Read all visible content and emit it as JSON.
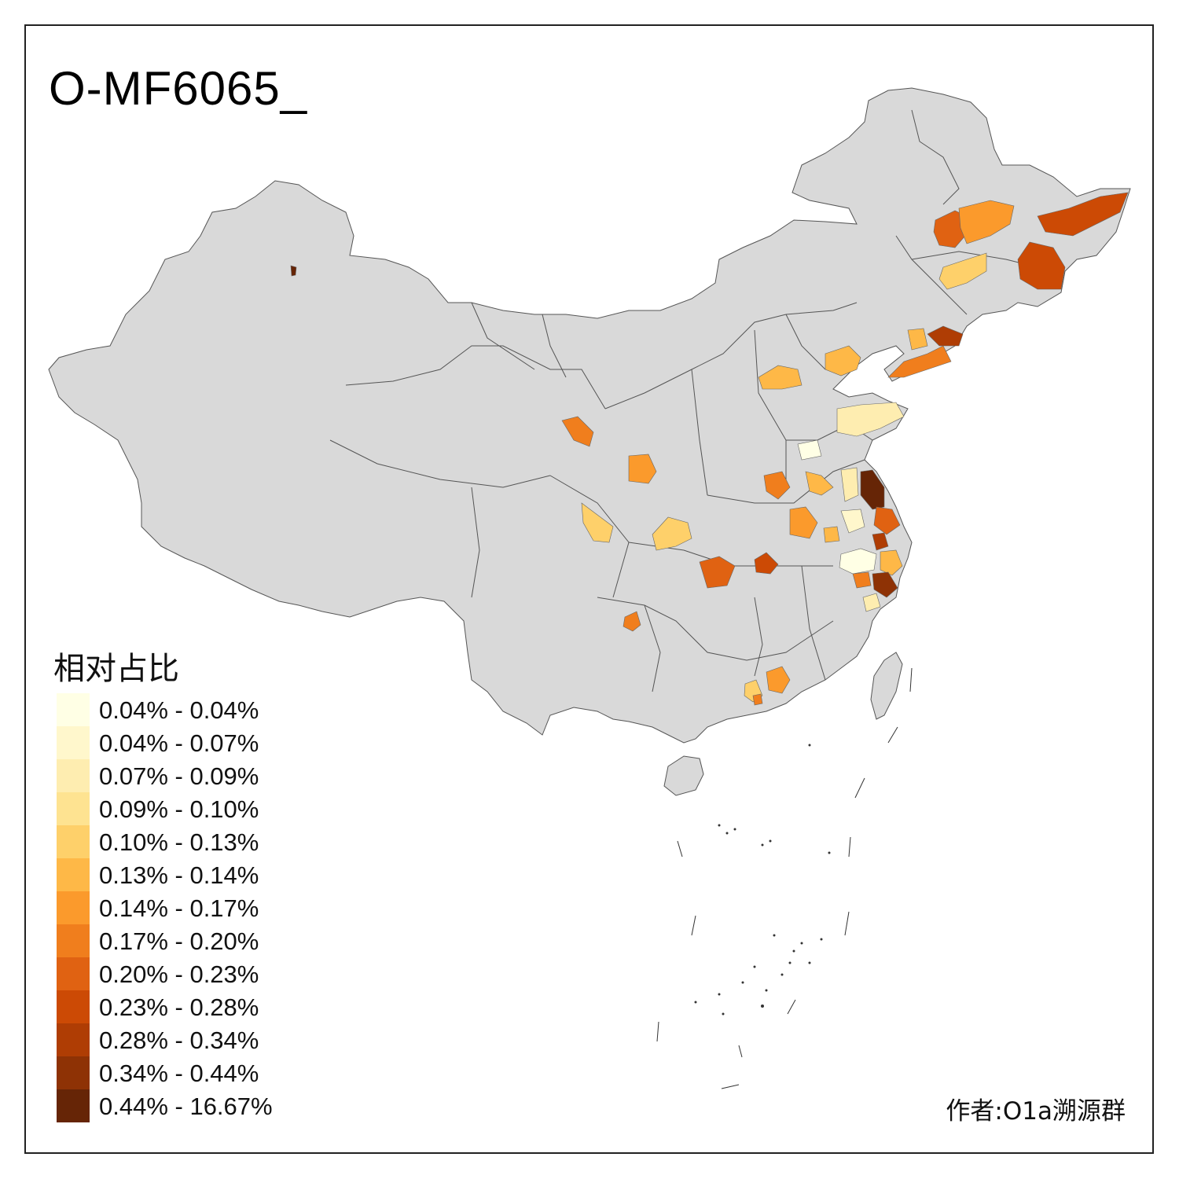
{
  "title": "O-MF6065_",
  "legend": {
    "title": "相对占比",
    "items": [
      {
        "label": "0.04% - 0.04%",
        "color": "#FFFFE5"
      },
      {
        "label": "0.04% - 0.07%",
        "color": "#FFF7CC"
      },
      {
        "label": "0.07% - 0.09%",
        "color": "#FEEDB0"
      },
      {
        "label": "0.09% - 0.10%",
        "color": "#FEE391"
      },
      {
        "label": "0.10% - 0.13%",
        "color": "#FED06A"
      },
      {
        "label": "0.13% - 0.14%",
        "color": "#FEB847"
      },
      {
        "label": "0.14% - 0.17%",
        "color": "#FB9A2C"
      },
      {
        "label": "0.17% - 0.20%",
        "color": "#F07E1D"
      },
      {
        "label": "0.20% - 0.23%",
        "color": "#E06212"
      },
      {
        "label": "0.23% - 0.28%",
        "color": "#CC4A05"
      },
      {
        "label": "0.28% - 0.34%",
        "color": "#AF3D04"
      },
      {
        "label": "0.34% - 0.44%",
        "color": "#8E3205"
      },
      {
        "label": "0.44% - 16.67%",
        "color": "#662506"
      }
    ]
  },
  "map": {
    "base_color": "#D9D9D9",
    "border_color": "#555555"
  },
  "author": "作者:O1a溯源群"
}
